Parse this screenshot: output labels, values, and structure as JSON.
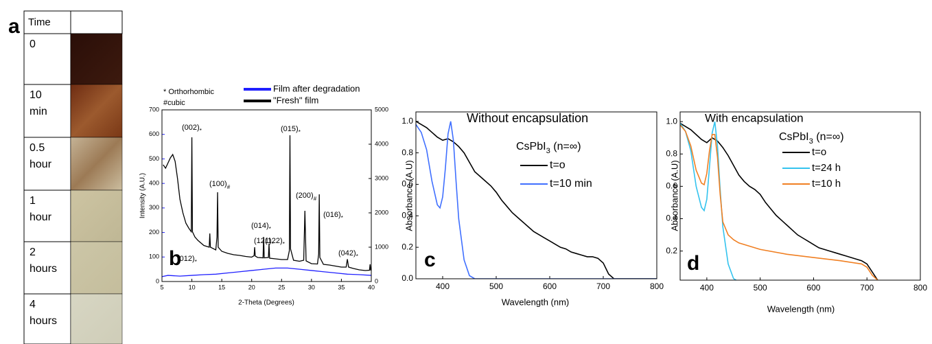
{
  "panel_a": {
    "label": "a",
    "header": "Time",
    "rows": [
      [
        "0"
      ],
      [
        "10",
        "min"
      ],
      [
        "0.5",
        "hour"
      ],
      [
        "1",
        "hour"
      ],
      [
        "2",
        "hours"
      ],
      [
        "4",
        "hours"
      ]
    ]
  },
  "chart_data": [
    {
      "type": "line",
      "panel": "b",
      "notes": [
        "* Orthorhombic",
        "#cubic"
      ],
      "x_label": "2-Theta (Degrees)",
      "y_label": "Intensity (A.U.)",
      "xlim": [
        5,
        40
      ],
      "xticks": [
        5,
        10,
        15,
        20,
        25,
        30,
        35,
        40
      ],
      "ylim": [
        0,
        700
      ],
      "yticks": [
        0,
        100,
        200,
        300,
        400,
        500,
        600,
        700
      ],
      "y2lim": [
        0,
        5000
      ],
      "y2ticks": [
        0,
        1000,
        2000,
        3000,
        4000,
        5000
      ],
      "series": [
        {
          "name": "Film after degradation",
          "color": "#1f1fff",
          "x": [
            5,
            6,
            8,
            10,
            12,
            14,
            16,
            18,
            20,
            22,
            24,
            26,
            28,
            30,
            32,
            34,
            36,
            38,
            40
          ],
          "values": [
            20,
            25,
            22,
            25,
            28,
            30,
            35,
            40,
            45,
            50,
            55,
            55,
            50,
            45,
            40,
            35,
            30,
            28,
            25
          ]
        },
        {
          "name": "\"Fresh\" film",
          "color": "#000000",
          "axis": "y2",
          "x": [
            5.2,
            5.6,
            6,
            6.4,
            6.8,
            7.2,
            7.6,
            8,
            8.5,
            9,
            9.5,
            9.9,
            10,
            10.1,
            10.5,
            11,
            12,
            12.9,
            13,
            13.1,
            14,
            14.2,
            14.3,
            14.4,
            15,
            16,
            17,
            18,
            19,
            20,
            20.4,
            20.5,
            20.6,
            21,
            21.9,
            22,
            22.1,
            22.8,
            22.9,
            23,
            24,
            25,
            26,
            26.3,
            26.4,
            26.5,
            27,
            28,
            28.7,
            28.9,
            29.1,
            30,
            31,
            31.2,
            31.3,
            31.4,
            32,
            33,
            34,
            35,
            35.8,
            36,
            36.2,
            37,
            38,
            39,
            39.7,
            39.8,
            39.9
          ],
          "values": [
            3400,
            3300,
            3450,
            3600,
            3700,
            3500,
            3000,
            2400,
            2000,
            1700,
            1550,
            1450,
            4200,
            1450,
            1300,
            1200,
            1050,
            1000,
            1400,
            1000,
            920,
            1300,
            2600,
            1000,
            880,
            820,
            780,
            760,
            730,
            710,
            750,
            1000,
            740,
            700,
            690,
            1300,
            690,
            700,
            1100,
            680,
            660,
            640,
            640,
            900,
            4260,
            950,
            620,
            590,
            620,
            2060,
            600,
            520,
            510,
            800,
            2540,
            700,
            500,
            480,
            450,
            420,
            420,
            650,
            420,
            380,
            340,
            320,
            330,
            500,
            320
          ]
        }
      ],
      "annotations": [
        {
          "text": "(002)",
          "sub": "*"
        },
        {
          "text": "(100)",
          "sub": "#"
        },
        {
          "text": "(012)",
          "sub": "*"
        },
        {
          "text": "(121)",
          "sub": "*"
        },
        {
          "text": "(014)",
          "sub": "*"
        },
        {
          "text": "(122)",
          "sub": "*"
        },
        {
          "text": "(015)",
          "sub": "*"
        },
        {
          "text": "(200)",
          "sub": "#"
        },
        {
          "text": "(016)",
          "sub": "*"
        },
        {
          "text": "(042)",
          "sub": "*"
        }
      ]
    },
    {
      "type": "line",
      "panel": "c",
      "title": "Without encapsulation",
      "subtitle": {
        "text": "CsPbI",
        "sub": "3",
        "tail": " (n=∞)"
      },
      "x_label": "Wavelength (nm)",
      "y_label": "Absorbance (A.U)",
      "xlim": [
        350,
        800
      ],
      "xticks": [
        400,
        500,
        600,
        700,
        800
      ],
      "ylim": [
        0,
        1.06
      ],
      "yticks": [
        {
          "value": 0,
          "label": "0.0"
        },
        0.2,
        0.4,
        0.6,
        0.8,
        {
          "value": 1,
          "label": "1.0"
        }
      ],
      "series": [
        {
          "name": "t=o",
          "color": "#000000",
          "x": [
            350,
            360,
            370,
            380,
            390,
            400,
            410,
            420,
            430,
            440,
            450,
            460,
            470,
            480,
            490,
            500,
            510,
            520,
            530,
            540,
            550,
            560,
            570,
            580,
            590,
            600,
            610,
            620,
            630,
            640,
            650,
            660,
            670,
            680,
            690,
            700,
            710,
            720,
            730,
            740,
            750,
            760,
            770,
            780,
            790,
            800
          ],
          "values": [
            1.0,
            0.98,
            0.96,
            0.93,
            0.9,
            0.88,
            0.89,
            0.87,
            0.84,
            0.8,
            0.74,
            0.68,
            0.65,
            0.62,
            0.59,
            0.55,
            0.5,
            0.46,
            0.42,
            0.39,
            0.36,
            0.33,
            0.3,
            0.28,
            0.26,
            0.24,
            0.22,
            0.2,
            0.19,
            0.17,
            0.16,
            0.15,
            0.14,
            0.14,
            0.13,
            0.1,
            0.03,
            0,
            0,
            0,
            0,
            0,
            0,
            0,
            0,
            0
          ]
        },
        {
          "name": "t=10 min",
          "color": "#3f6fff",
          "x": [
            350,
            360,
            370,
            380,
            390,
            395,
            400,
            405,
            410,
            415,
            420,
            425,
            430,
            440,
            450,
            460,
            480,
            500,
            600,
            700,
            800
          ],
          "values": [
            0.98,
            0.93,
            0.82,
            0.62,
            0.47,
            0.45,
            0.52,
            0.7,
            0.92,
            1.0,
            0.88,
            0.62,
            0.38,
            0.12,
            0.02,
            0,
            0,
            0,
            0,
            0,
            0
          ]
        }
      ]
    },
    {
      "type": "line",
      "panel": "d",
      "title": "With encapsulation",
      "subtitle": {
        "text": "CsPbI",
        "sub": "3",
        "tail": " (n=∞)"
      },
      "x_label": "Wavelength (nm)",
      "y_label": "Absorbance (A.U)",
      "xlim": [
        350,
        800
      ],
      "xticks": [
        400,
        500,
        600,
        700,
        800
      ],
      "ylim": [
        0.02,
        1.06
      ],
      "yticks": [
        0.2,
        0.4,
        0.6,
        0.8,
        {
          "value": 1,
          "label": "1.0"
        }
      ],
      "series": [
        {
          "name": "t=o",
          "color": "#000000",
          "x": [
            350,
            360,
            370,
            380,
            390,
            400,
            410,
            420,
            430,
            440,
            450,
            460,
            470,
            480,
            490,
            500,
            510,
            520,
            530,
            540,
            550,
            560,
            570,
            580,
            590,
            600,
            610,
            620,
            630,
            640,
            650,
            660,
            670,
            680,
            690,
            700,
            710,
            720
          ],
          "values": [
            0.99,
            0.97,
            0.95,
            0.92,
            0.89,
            0.87,
            0.9,
            0.88,
            0.84,
            0.79,
            0.73,
            0.67,
            0.63,
            0.6,
            0.58,
            0.55,
            0.5,
            0.46,
            0.42,
            0.39,
            0.36,
            0.33,
            0.3,
            0.28,
            0.26,
            0.24,
            0.22,
            0.21,
            0.2,
            0.19,
            0.18,
            0.17,
            0.16,
            0.15,
            0.14,
            0.12,
            0.07,
            0.02
          ]
        },
        {
          "name": "t=24 h",
          "color": "#33c3ee",
          "x": [
            350,
            360,
            370,
            380,
            390,
            395,
            400,
            405,
            410,
            415,
            420,
            425,
            430,
            440,
            450,
            455
          ],
          "values": [
            0.99,
            0.94,
            0.82,
            0.6,
            0.47,
            0.45,
            0.52,
            0.72,
            0.93,
            1.0,
            0.85,
            0.58,
            0.35,
            0.12,
            0.03,
            0.02
          ]
        },
        {
          "name": "t=10 h",
          "color": "#f07f22",
          "x": [
            350,
            360,
            370,
            380,
            390,
            395,
            400,
            405,
            410,
            415,
            420,
            425,
            430,
            440,
            450,
            460,
            480,
            500,
            550,
            600,
            650,
            690,
            700,
            710,
            720
          ],
          "values": [
            0.98,
            0.94,
            0.85,
            0.7,
            0.62,
            0.61,
            0.68,
            0.82,
            0.92,
            0.92,
            0.78,
            0.55,
            0.38,
            0.3,
            0.27,
            0.25,
            0.23,
            0.21,
            0.18,
            0.16,
            0.14,
            0.12,
            0.1,
            0.05,
            0.02
          ]
        }
      ]
    }
  ]
}
